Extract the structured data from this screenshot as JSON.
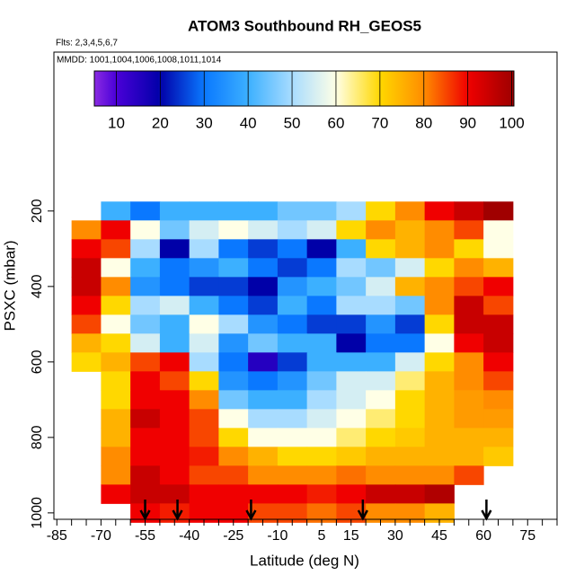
{
  "chart_data": {
    "type": "heatmap",
    "title": "ATOM3 Southbound RH_GEOS5",
    "subtitle": "Flts: 2,3,4,5,6,7",
    "annotation": "MMDD: 1001,1004,1006,1008,1011,1014",
    "xlabel": "Latitude (deg N)",
    "ylabel": "PSXC (mbar)",
    "xlim": [
      -86,
      85
    ],
    "ylim": [
      1017,
      -221
    ],
    "xticks": [
      -85,
      -70,
      -55,
      -40,
      -25,
      -10,
      5,
      15,
      30,
      45,
      60,
      75
    ],
    "xminorticks": [
      -80,
      -75,
      -65,
      -60,
      -50,
      -45,
      -35,
      -30,
      -20,
      -15,
      -5,
      0,
      10,
      20,
      25,
      35,
      40,
      50,
      55,
      65,
      70,
      80,
      85
    ],
    "yticks": [
      200,
      400,
      600,
      800,
      1000
    ],
    "colorbar_lim": [
      5,
      100.5
    ],
    "colorbar_ticks": [
      10,
      20,
      30,
      40,
      50,
      60,
      70,
      80,
      90,
      100
    ],
    "colorscale": [
      [
        5,
        "#8a2be2"
      ],
      [
        10,
        "#4a00d8"
      ],
      [
        20,
        "#0000a8"
      ],
      [
        30,
        "#0a78ff"
      ],
      [
        40,
        "#3cb0ff"
      ],
      [
        50,
        "#a8dcff"
      ],
      [
        60,
        "#ffffe6"
      ],
      [
        70,
        "#ffd800"
      ],
      [
        80,
        "#ff8c00"
      ],
      [
        90,
        "#f00000"
      ],
      [
        100,
        "#a00000"
      ]
    ],
    "lats": [
      -75,
      -65,
      -55,
      -45,
      -35,
      -25,
      -15,
      -5,
      5,
      15,
      25,
      35,
      45,
      55,
      65
    ],
    "pressures": [
      200,
      250,
      300,
      350,
      400,
      450,
      500,
      550,
      600,
      650,
      700,
      750,
      800,
      850,
      900,
      950,
      1000
    ],
    "values": [
      [
        null,
        40,
        30,
        40,
        40,
        40,
        40,
        45,
        45,
        50,
        70,
        80,
        90,
        95,
        100
      ],
      [
        80,
        90,
        60,
        45,
        55,
        60,
        55,
        50,
        55,
        70,
        80,
        75,
        80,
        85,
        60
      ],
      [
        90,
        85,
        50,
        20,
        50,
        30,
        25,
        30,
        20,
        40,
        70,
        75,
        80,
        70,
        60
      ],
      [
        95,
        60,
        40,
        30,
        35,
        40,
        30,
        25,
        30,
        50,
        45,
        55,
        70,
        80,
        75
      ],
      [
        95,
        80,
        35,
        30,
        25,
        25,
        20,
        35,
        40,
        45,
        55,
        75,
        80,
        85,
        90
      ],
      [
        90,
        70,
        50,
        55,
        40,
        30,
        25,
        40,
        30,
        50,
        50,
        45,
        80,
        95,
        85
      ],
      [
        85,
        60,
        45,
        40,
        60,
        50,
        35,
        30,
        25,
        25,
        35,
        25,
        70,
        95,
        95
      ],
      [
        75,
        70,
        55,
        40,
        55,
        35,
        45,
        40,
        40,
        20,
        30,
        30,
        60,
        90,
        95
      ],
      [
        70,
        75,
        85,
        90,
        50,
        30,
        15,
        25,
        40,
        40,
        40,
        55,
        70,
        80,
        90
      ],
      [
        null,
        70,
        90,
        85,
        70,
        35,
        30,
        35,
        45,
        55,
        55,
        65,
        75,
        80,
        85
      ],
      [
        null,
        70,
        90,
        90,
        80,
        45,
        40,
        40,
        50,
        55,
        60,
        70,
        75,
        78,
        80
      ],
      [
        null,
        75,
        95,
        90,
        85,
        60,
        50,
        50,
        55,
        60,
        65,
        70,
        75,
        78,
        78
      ],
      [
        null,
        75,
        90,
        90,
        85,
        70,
        60,
        60,
        60,
        65,
        70,
        72,
        75,
        75,
        75
      ],
      [
        null,
        80,
        90,
        90,
        88,
        80,
        75,
        70,
        70,
        72,
        75,
        75,
        75,
        75,
        72
      ],
      [
        null,
        80,
        95,
        90,
        85,
        85,
        80,
        80,
        80,
        82,
        80,
        80,
        80,
        85,
        null
      ],
      [
        null,
        90,
        95,
        95,
        90,
        90,
        90,
        90,
        88,
        90,
        95,
        95,
        98,
        null,
        null
      ],
      [
        null,
        null,
        90,
        88,
        90,
        90,
        85,
        85,
        82,
        85,
        80,
        80,
        75,
        null,
        null
      ]
    ],
    "arrows": [
      -55,
      -44,
      -19,
      19,
      61
    ]
  }
}
